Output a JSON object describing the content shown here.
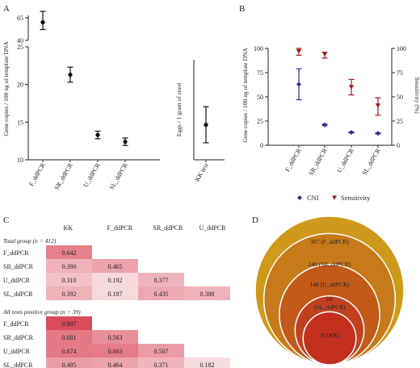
{
  "chart_data": [
    {
      "panel": "A",
      "type": "scatter",
      "subtype": "point-range",
      "ylabel": "Gene copies / 100 ng of template DNA",
      "broken_axis": true,
      "ylim_lower": [
        10,
        25
      ],
      "ylim_upper": [
        40,
        65
      ],
      "yticks": [
        10,
        15,
        20,
        25,
        40,
        65
      ],
      "categories": [
        "F_ddPCR",
        "SR_ddPCR",
        "U_ddPCR",
        "SL_ddPCR"
      ],
      "series": [
        {
          "values": [
            60,
            21.3,
            13.3,
            12.4
          ],
          "err_low": [
            52,
            20.3,
            12.8,
            11.9
          ],
          "err_high": [
            72,
            22.3,
            13.8,
            12.9
          ]
        }
      ]
    },
    {
      "panel": "A",
      "type": "scatter",
      "subtype": "point-range",
      "ylabel": "Eggs / 1 gram of stool",
      "ylim": [
        0,
        50
      ],
      "categories": [
        "KK test"
      ],
      "series": [
        {
          "values": [
            17.5
          ],
          "err_low": [
            8.5
          ],
          "err_high": [
            26.5
          ]
        }
      ]
    },
    {
      "panel": "B",
      "type": "scatter",
      "subtype": "point-range-dual-axis",
      "ylabel": "Gene copies / 100 ng of template DNA",
      "y2label": "Sensitivity (%)",
      "ylim": [
        0,
        100
      ],
      "y2lim": [
        0,
        100
      ],
      "yticks": [
        0,
        25,
        50,
        75,
        100
      ],
      "categories": [
        "F_ddPCR",
        "SR_ddPCR",
        "U_ddPCR",
        "SL_ddPCR"
      ],
      "series": [
        {
          "name": "CNI",
          "marker": "diamond",
          "color": "#2e2e8c",
          "values": [
            63,
            21,
            13.3,
            12.3
          ],
          "err_low": [
            47,
            20.3,
            12.8,
            11.8
          ],
          "err_high": [
            79,
            21.8,
            13.8,
            12.8
          ]
        },
        {
          "name": "Sensitivity",
          "marker": "triangle-down",
          "color": "#a01c1c",
          "values": [
            97,
            94,
            60,
            41
          ],
          "err_low": [
            93,
            90,
            52,
            31
          ],
          "err_high": [
            100,
            96,
            68,
            49
          ]
        }
      ],
      "legend_position": "bottom"
    },
    {
      "panel": "C",
      "type": "heatmap",
      "columns": [
        "KK",
        "F_ddPCR",
        "SR_ddPCR",
        "U_ddPCR"
      ],
      "groups": [
        {
          "title": "Total group (n = 412)",
          "rows": [
            {
              "label": "F_ddPCR",
              "values": [
                "0.642",
                "",
                "",
                ""
              ]
            },
            {
              "label": "SR_ddPCR",
              "values": [
                "0.390",
                "0.465",
                "",
                ""
              ]
            },
            {
              "label": "U_ddPCR",
              "values": [
                "0.310",
                "0.192",
                "0.377",
                ""
              ]
            },
            {
              "label": "SL_ddPCR",
              "values": [
                "0.392",
                "0.187",
                "0.435",
                "0.388"
              ]
            }
          ]
        },
        {
          "title": "All tests positive group (n = 39)",
          "rows": [
            {
              "label": "F_ddPCR",
              "values": [
                "0.907",
                "",
                "",
                ""
              ]
            },
            {
              "label": "SR_ddPCR",
              "values": [
                "0.681",
                "0.563",
                "",
                ""
              ]
            },
            {
              "label": "U_ddPCR",
              "values": [
                "0.674",
                "0.663",
                "0.507",
                ""
              ]
            },
            {
              "label": "SL_ddPCR",
              "values": [
                "0.495",
                "0.464",
                "0.371",
                "0.182"
              ]
            }
          ]
        }
      ]
    },
    {
      "panel": "D",
      "type": "nested-circles",
      "circles": [
        {
          "count": 307,
          "label": "307 (F_ddPCR)",
          "color": "#cf9a1c"
        },
        {
          "count": 240,
          "label": "240 (SR_ddPCR)",
          "color": "#c67a1a"
        },
        {
          "count": 140,
          "label": "140 (U_ddPCR)",
          "color": "#c25a1a"
        },
        {
          "count": 66,
          "label": "66\n(SL_ddPCR)",
          "color": "#c2401e"
        },
        {
          "count": 39,
          "label": "39 (KK)",
          "color": "#c4301e"
        }
      ]
    }
  ],
  "panel_labels": {
    "a": "A",
    "b": "B",
    "c": "C",
    "d": "D"
  }
}
